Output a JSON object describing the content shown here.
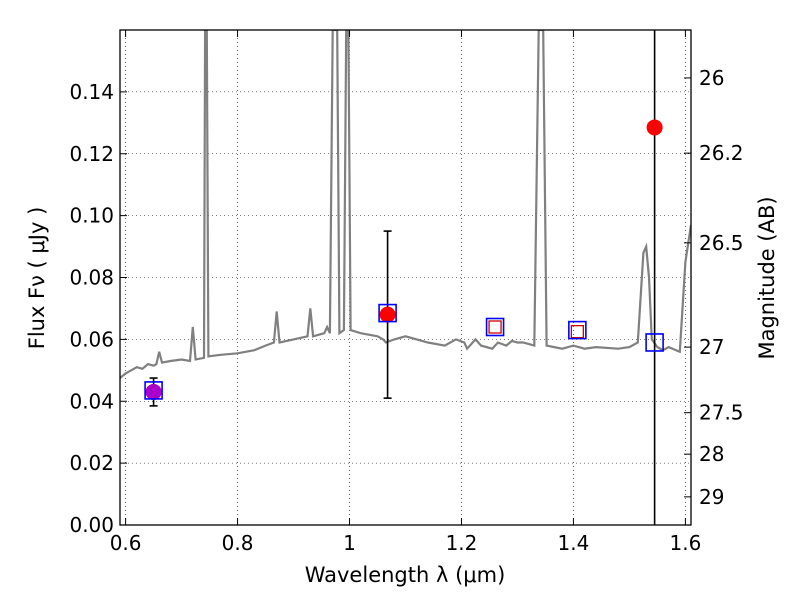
{
  "chart_data": {
    "type": "scatter",
    "xlabel": "Wavelength  λ (μm)",
    "ylabel": "Flux  Fν  ( μJy )",
    "y2label": "Magnitude (AB)",
    "xlim": [
      0.59,
      1.61
    ],
    "ylim": [
      0.0,
      0.16
    ],
    "grid": true,
    "x_ticks": [
      0.6,
      0.8,
      1.0,
      1.2,
      1.4,
      1.6
    ],
    "x_tick_labels": [
      "0.6",
      "0.8",
      "1",
      "1.2",
      "1.4",
      "1.6"
    ],
    "y_ticks": [
      0.0,
      0.02,
      0.04,
      0.06,
      0.08,
      0.1,
      0.12,
      0.14
    ],
    "y_tick_labels": [
      "0.00",
      "0.02",
      "0.04",
      "0.06",
      "0.08",
      "0.10",
      "0.12",
      "0.14"
    ],
    "mag_ticks": [
      {
        "label": "26",
        "flux": 0.1445
      },
      {
        "label": "26.2",
        "flux": 0.1202
      },
      {
        "label": "26.5",
        "flux": 0.0912
      },
      {
        "label": "27",
        "flux": 0.0575
      },
      {
        "label": "27.5",
        "flux": 0.0363
      },
      {
        "label": "28",
        "flux": 0.0229
      },
      {
        "label": "29",
        "flux": 0.0091
      }
    ],
    "series": [
      {
        "kind": "model-spectrum",
        "color": "#808080",
        "points": [
          [
            0.59,
            0.0475
          ],
          [
            0.6,
            0.049
          ],
          [
            0.61,
            0.05
          ],
          [
            0.62,
            0.051
          ],
          [
            0.63,
            0.0505
          ],
          [
            0.64,
            0.052
          ],
          [
            0.65,
            0.0515
          ],
          [
            0.655,
            0.052
          ],
          [
            0.66,
            0.056
          ],
          [
            0.665,
            0.0525
          ],
          [
            0.68,
            0.053
          ],
          [
            0.7,
            0.0535
          ],
          [
            0.715,
            0.053
          ],
          [
            0.72,
            0.064
          ],
          [
            0.725,
            0.0535
          ],
          [
            0.74,
            0.054
          ],
          [
            0.742,
            0.16
          ],
          [
            0.745,
            0.16
          ],
          [
            0.748,
            0.0545
          ],
          [
            0.77,
            0.055
          ],
          [
            0.8,
            0.0555
          ],
          [
            0.83,
            0.0565
          ],
          [
            0.85,
            0.058
          ],
          [
            0.865,
            0.059
          ],
          [
            0.87,
            0.069
          ],
          [
            0.875,
            0.059
          ],
          [
            0.9,
            0.06
          ],
          [
            0.925,
            0.061
          ],
          [
            0.93,
            0.07
          ],
          [
            0.935,
            0.061
          ],
          [
            0.955,
            0.062
          ],
          [
            0.96,
            0.064
          ],
          [
            0.965,
            0.062
          ],
          [
            0.97,
            0.16
          ],
          [
            0.978,
            0.16
          ],
          [
            0.982,
            0.062
          ],
          [
            0.99,
            0.063
          ],
          [
            0.994,
            0.16
          ],
          [
            0.998,
            0.16
          ],
          [
            1.002,
            0.063
          ],
          [
            1.02,
            0.062
          ],
          [
            1.05,
            0.061
          ],
          [
            1.06,
            0.06
          ],
          [
            1.065,
            0.059
          ],
          [
            1.08,
            0.06
          ],
          [
            1.1,
            0.061
          ],
          [
            1.14,
            0.059
          ],
          [
            1.17,
            0.058
          ],
          [
            1.19,
            0.06
          ],
          [
            1.205,
            0.059
          ],
          [
            1.21,
            0.057
          ],
          [
            1.225,
            0.06
          ],
          [
            1.235,
            0.058
          ],
          [
            1.255,
            0.057
          ],
          [
            1.265,
            0.059
          ],
          [
            1.28,
            0.058
          ],
          [
            1.29,
            0.0595
          ],
          [
            1.3,
            0.059
          ],
          [
            1.31,
            0.059
          ],
          [
            1.33,
            0.058
          ],
          [
            1.338,
            0.16
          ],
          [
            1.346,
            0.16
          ],
          [
            1.352,
            0.058
          ],
          [
            1.38,
            0.057
          ],
          [
            1.4,
            0.058
          ],
          [
            1.42,
            0.057
          ],
          [
            1.44,
            0.0575
          ],
          [
            1.48,
            0.057
          ],
          [
            1.5,
            0.0575
          ],
          [
            1.515,
            0.059
          ],
          [
            1.525,
            0.088
          ],
          [
            1.53,
            0.09
          ],
          [
            1.535,
            0.08
          ],
          [
            1.54,
            0.06
          ],
          [
            1.55,
            0.0575
          ],
          [
            1.56,
            0.0565
          ],
          [
            1.57,
            0.0575
          ],
          [
            1.59,
            0.056
          ],
          [
            1.6,
            0.085
          ],
          [
            1.61,
            0.097
          ]
        ]
      },
      {
        "kind": "observed-photometry",
        "color": "#ff0000",
        "points": [
          {
            "x": 0.65,
            "y": 0.043,
            "yerr": 0.0045
          },
          {
            "x": 1.068,
            "y": 0.068,
            "yerr": 0.027
          },
          {
            "x": 1.545,
            "y": 0.1285,
            "yerr": 0.45
          }
        ]
      },
      {
        "kind": "upper-limit",
        "color": "#cc0000",
        "points": [
          {
            "x": 1.26,
            "y": 0.064
          },
          {
            "x": 1.407,
            "y": 0.0625
          }
        ]
      },
      {
        "kind": "model-photometry",
        "color": "#0000ff",
        "points": [
          {
            "x": 0.65,
            "y": 0.0435
          },
          {
            "x": 1.068,
            "y": 0.0685
          },
          {
            "x": 1.26,
            "y": 0.064
          },
          {
            "x": 1.407,
            "y": 0.063
          },
          {
            "x": 1.545,
            "y": 0.059
          }
        ]
      }
    ],
    "overlap_marker": {
      "x": 0.65,
      "y": 0.043,
      "color": "#aa00cc"
    }
  }
}
